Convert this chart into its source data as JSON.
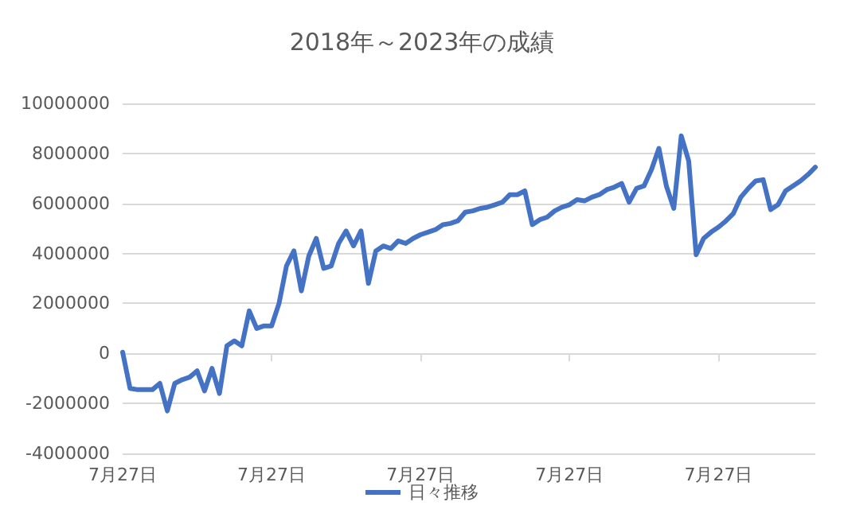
{
  "chart_data": {
    "type": "line",
    "title": "2018年～2023年の成績",
    "categories": [
      "7月27日",
      null,
      null,
      null,
      null,
      null,
      null,
      null,
      null,
      null,
      null,
      null,
      null,
      null,
      null,
      null,
      null,
      null,
      null,
      null,
      "7月27日",
      null,
      null,
      null,
      null,
      null,
      null,
      null,
      null,
      null,
      null,
      null,
      null,
      null,
      null,
      null,
      null,
      null,
      null,
      null,
      "7月27日",
      null,
      null,
      null,
      null,
      null,
      null,
      null,
      null,
      null,
      null,
      null,
      null,
      null,
      null,
      null,
      null,
      null,
      null,
      null,
      "7月27日",
      null,
      null,
      null,
      null,
      null,
      null,
      null,
      null,
      null,
      null,
      null,
      null,
      null,
      null,
      null,
      null,
      null,
      null,
      null,
      "7月27日",
      null,
      null,
      null,
      null,
      null,
      null,
      null,
      null,
      null,
      null,
      null,
      null,
      null
    ],
    "series": [
      {
        "name": "日々推移",
        "color": "#4472c4",
        "values": [
          50000,
          -1400000,
          -1450000,
          -1450000,
          -1450000,
          -1200000,
          -2300000,
          -1200000,
          -1050000,
          -950000,
          -700000,
          -1500000,
          -600000,
          -1600000,
          300000,
          500000,
          300000,
          1700000,
          1000000,
          1100000,
          1100000,
          2000000,
          3500000,
          4100000,
          2500000,
          3900000,
          4600000,
          3400000,
          3500000,
          4400000,
          4900000,
          4300000,
          4900000,
          2800000,
          4100000,
          4300000,
          4200000,
          4500000,
          4400000,
          4600000,
          4750000,
          4850000,
          4950000,
          5150000,
          5200000,
          5300000,
          5650000,
          5700000,
          5800000,
          5850000,
          5950000,
          6050000,
          6350000,
          6350000,
          6500000,
          5150000,
          5350000,
          5450000,
          5700000,
          5850000,
          5950000,
          6150000,
          6100000,
          6250000,
          6350000,
          6550000,
          6650000,
          6800000,
          6050000,
          6600000,
          6700000,
          7350000,
          8200000,
          6700000,
          5800000,
          8700000,
          7700000,
          3950000,
          4600000,
          4850000,
          5050000,
          5300000,
          5600000,
          6250000,
          6600000,
          6900000,
          6950000,
          5750000,
          5950000,
          6500000,
          6700000,
          6900000,
          7150000,
          7450000
        ]
      }
    ],
    "ylim": [
      -4000000,
      10000000
    ],
    "yticks": [
      -4000000,
      -2000000,
      0,
      2000000,
      4000000,
      6000000,
      8000000,
      10000000
    ],
    "grid": "y",
    "legend": "bottom",
    "marker": "none",
    "line_style": "solid"
  }
}
